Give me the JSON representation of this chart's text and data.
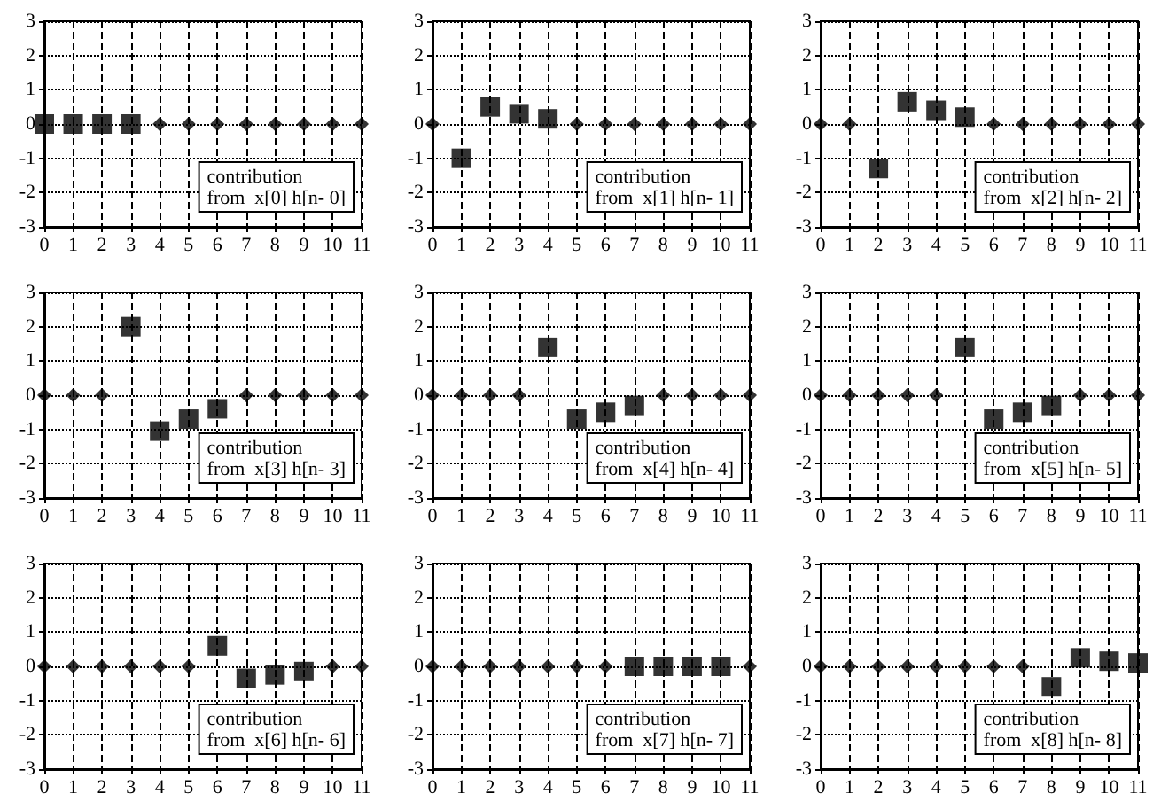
{
  "chart_data": [
    {
      "type": "scatter",
      "xlim": [
        0,
        11
      ],
      "xticks": [
        0,
        1,
        2,
        3,
        4,
        5,
        6,
        7,
        8,
        9,
        10,
        11
      ],
      "ylim": [
        -3,
        3
      ],
      "yticks": [
        -3,
        -2,
        -1,
        0,
        1,
        2,
        3
      ],
      "grid": true,
      "annotations": [
        "contribution\nfrom  x[0] h[n- 0]"
      ],
      "series": [
        {
          "marker": "square",
          "color": "#000000",
          "x": [
            0,
            1,
            2,
            3
          ],
          "values": [
            0,
            0,
            0,
            0
          ]
        },
        {
          "marker": "diamond",
          "color": "#000000",
          "x": [
            4,
            5,
            6,
            7,
            8,
            9,
            10,
            11
          ],
          "values": [
            0,
            0,
            0,
            0,
            0,
            0,
            0,
            0
          ]
        }
      ]
    },
    {
      "type": "scatter",
      "xlim": [
        0,
        11
      ],
      "xticks": [
        0,
        1,
        2,
        3,
        4,
        5,
        6,
        7,
        8,
        9,
        10,
        11
      ],
      "ylim": [
        -3,
        3
      ],
      "yticks": [
        -3,
        -2,
        -1,
        0,
        1,
        2,
        3
      ],
      "grid": true,
      "annotations": [
        "contribution\nfrom  x[1] h[n- 1]"
      ],
      "series": [
        {
          "marker": "square",
          "color": "#000000",
          "x": [
            1,
            2,
            3,
            4
          ],
          "values": [
            -1,
            0.5,
            0.3,
            0.15
          ]
        },
        {
          "marker": "diamond",
          "color": "#000000",
          "x": [
            0,
            5,
            6,
            7,
            8,
            9,
            10,
            11
          ],
          "values": [
            0,
            0,
            0,
            0,
            0,
            0,
            0,
            0
          ]
        }
      ]
    },
    {
      "type": "scatter",
      "xlim": [
        0,
        11
      ],
      "xticks": [
        0,
        1,
        2,
        3,
        4,
        5,
        6,
        7,
        8,
        9,
        10,
        11
      ],
      "ylim": [
        -3,
        3
      ],
      "yticks": [
        -3,
        -2,
        -1,
        0,
        1,
        2,
        3
      ],
      "grid": true,
      "annotations": [
        "contribution\nfrom  x[2] h[n- 2]"
      ],
      "series": [
        {
          "marker": "square",
          "color": "#000000",
          "x": [
            2,
            3,
            4,
            5
          ],
          "values": [
            -1.3,
            0.65,
            0.4,
            0.2
          ]
        },
        {
          "marker": "diamond",
          "color": "#000000",
          "x": [
            0,
            1,
            6,
            7,
            8,
            9,
            10,
            11
          ],
          "values": [
            0,
            0,
            0,
            0,
            0,
            0,
            0,
            0
          ]
        }
      ]
    },
    {
      "type": "scatter",
      "xlim": [
        0,
        11
      ],
      "xticks": [
        0,
        1,
        2,
        3,
        4,
        5,
        6,
        7,
        8,
        9,
        10,
        11
      ],
      "ylim": [
        -3,
        3
      ],
      "yticks": [
        -3,
        -2,
        -1,
        0,
        1,
        2,
        3
      ],
      "grid": true,
      "annotations": [
        "contribution\nfrom  x[3] h[n- 3]"
      ],
      "series": [
        {
          "marker": "square",
          "color": "#000000",
          "x": [
            3,
            4,
            5,
            6
          ],
          "values": [
            2,
            -1.05,
            -0.7,
            -0.4
          ]
        },
        {
          "marker": "diamond",
          "color": "#000000",
          "x": [
            0,
            1,
            2,
            7,
            8,
            9,
            10,
            11
          ],
          "values": [
            0,
            0,
            0,
            0,
            0,
            0,
            0,
            0
          ]
        }
      ]
    },
    {
      "type": "scatter",
      "xlim": [
        0,
        11
      ],
      "xticks": [
        0,
        1,
        2,
        3,
        4,
        5,
        6,
        7,
        8,
        9,
        10,
        11
      ],
      "ylim": [
        -3,
        3
      ],
      "yticks": [
        -3,
        -2,
        -1,
        0,
        1,
        2,
        3
      ],
      "grid": true,
      "annotations": [
        "contribution\nfrom  x[4] h[n- 4]"
      ],
      "series": [
        {
          "marker": "square",
          "color": "#000000",
          "x": [
            4,
            5,
            6,
            7
          ],
          "values": [
            1.4,
            -0.7,
            -0.5,
            -0.3
          ]
        },
        {
          "marker": "diamond",
          "color": "#000000",
          "x": [
            0,
            1,
            2,
            3,
            8,
            9,
            10,
            11
          ],
          "values": [
            0,
            0,
            0,
            0,
            0,
            0,
            0,
            0
          ]
        }
      ]
    },
    {
      "type": "scatter",
      "xlim": [
        0,
        11
      ],
      "xticks": [
        0,
        1,
        2,
        3,
        4,
        5,
        6,
        7,
        8,
        9,
        10,
        11
      ],
      "ylim": [
        -3,
        3
      ],
      "yticks": [
        -3,
        -2,
        -1,
        0,
        1,
        2,
        3
      ],
      "grid": true,
      "annotations": [
        "contribution\nfrom  x[5] h[n- 5]"
      ],
      "series": [
        {
          "marker": "square",
          "color": "#000000",
          "x": [
            5,
            6,
            7,
            8
          ],
          "values": [
            1.4,
            -0.7,
            -0.5,
            -0.3
          ]
        },
        {
          "marker": "diamond",
          "color": "#000000",
          "x": [
            0,
            1,
            2,
            3,
            4,
            9,
            10,
            11
          ],
          "values": [
            0,
            0,
            0,
            0,
            0,
            0,
            0,
            0
          ]
        }
      ]
    },
    {
      "type": "scatter",
      "xlim": [
        0,
        11
      ],
      "xticks": [
        0,
        1,
        2,
        3,
        4,
        5,
        6,
        7,
        8,
        9,
        10,
        11
      ],
      "ylim": [
        -3,
        3
      ],
      "yticks": [
        -3,
        -2,
        -1,
        0,
        1,
        2,
        3
      ],
      "grid": true,
      "annotations": [
        "contribution\nfrom  x[6] h[n- 6]"
      ],
      "series": [
        {
          "marker": "square",
          "color": "#000000",
          "x": [
            6,
            7,
            8,
            9
          ],
          "values": [
            0.6,
            -0.35,
            -0.25,
            -0.15
          ]
        },
        {
          "marker": "diamond",
          "color": "#000000",
          "x": [
            0,
            1,
            2,
            3,
            4,
            5,
            10,
            11
          ],
          "values": [
            0,
            0,
            0,
            0,
            0,
            0,
            0,
            0
          ]
        }
      ]
    },
    {
      "type": "scatter",
      "xlim": [
        0,
        11
      ],
      "xticks": [
        0,
        1,
        2,
        3,
        4,
        5,
        6,
        7,
        8,
        9,
        10,
        11
      ],
      "ylim": [
        -3,
        3
      ],
      "yticks": [
        -3,
        -2,
        -1,
        0,
        1,
        2,
        3
      ],
      "grid": true,
      "annotations": [
        "contribution\nfrom  x[7] h[n- 7]"
      ],
      "series": [
        {
          "marker": "square",
          "color": "#000000",
          "x": [
            7,
            8,
            9,
            10
          ],
          "values": [
            0,
            0,
            0,
            0
          ]
        },
        {
          "marker": "diamond",
          "color": "#000000",
          "x": [
            0,
            1,
            2,
            3,
            4,
            5,
            6,
            11
          ],
          "values": [
            0,
            0,
            0,
            0,
            0,
            0,
            0,
            0
          ]
        }
      ]
    },
    {
      "type": "scatter",
      "xlim": [
        0,
        11
      ],
      "xticks": [
        0,
        1,
        2,
        3,
        4,
        5,
        6,
        7,
        8,
        9,
        10,
        11
      ],
      "ylim": [
        -3,
        3
      ],
      "yticks": [
        -3,
        -2,
        -1,
        0,
        1,
        2,
        3
      ],
      "grid": true,
      "annotations": [
        "contribution\nfrom  x[8] h[n- 8]"
      ],
      "series": [
        {
          "marker": "square",
          "color": "#000000",
          "x": [
            8,
            9,
            10,
            11
          ],
          "values": [
            -0.6,
            0.25,
            0.15,
            0.1
          ]
        },
        {
          "marker": "diamond",
          "color": "#000000",
          "x": [
            0,
            1,
            2,
            3,
            4,
            5,
            6,
            7
          ],
          "values": [
            0,
            0,
            0,
            0,
            0,
            0,
            0,
            0
          ]
        }
      ]
    }
  ]
}
